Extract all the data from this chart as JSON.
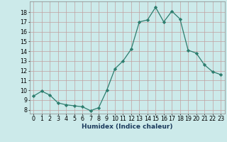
{
  "x": [
    0,
    1,
    2,
    3,
    4,
    5,
    6,
    7,
    8,
    9,
    10,
    11,
    12,
    13,
    14,
    15,
    16,
    17,
    18,
    19,
    20,
    21,
    22,
    23
  ],
  "y": [
    9.4,
    9.9,
    9.5,
    8.7,
    8.5,
    8.4,
    8.3,
    7.9,
    8.2,
    10.0,
    12.2,
    13.0,
    14.2,
    17.0,
    17.2,
    18.5,
    17.0,
    18.1,
    17.3,
    14.1,
    13.8,
    12.6,
    11.9,
    11.6
  ],
  "line_color": "#2d7d6e",
  "marker": "D",
  "marker_size": 2.2,
  "bg_color": "#cceaea",
  "grid_color": "#c0a0a0",
  "xlabel": "Humidex (Indice chaleur)",
  "ylabel_ticks": [
    8,
    9,
    10,
    11,
    12,
    13,
    14,
    15,
    16,
    17,
    18
  ],
  "ylim": [
    7.6,
    19.1
  ],
  "xlim": [
    -0.5,
    23.5
  ],
  "tick_fontsize": 5.8,
  "xlabel_fontsize": 6.5
}
